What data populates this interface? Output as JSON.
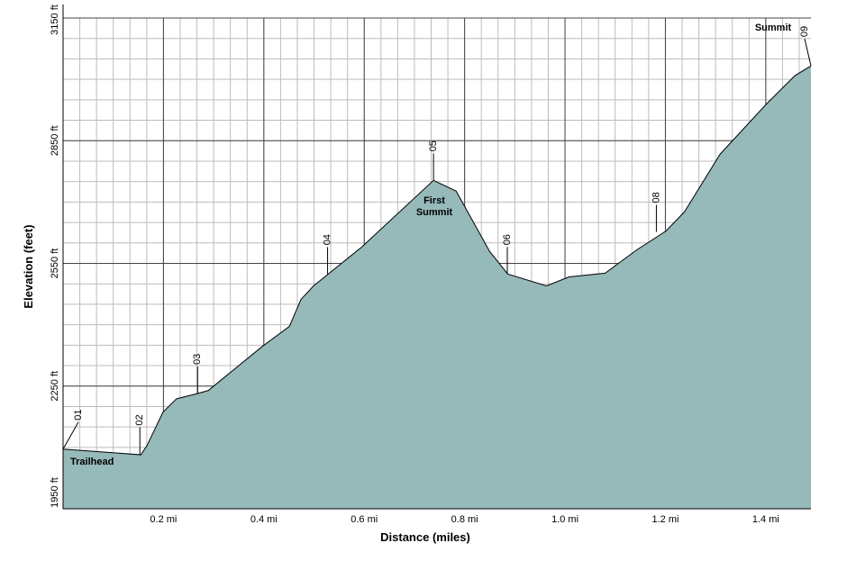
{
  "chart_data": {
    "type": "area",
    "x_label": "Distance (miles)",
    "y_label": "Elevation (feet)",
    "xlim": [
      0,
      1.49
    ],
    "ylim": [
      1950,
      3150
    ],
    "xticks": [
      {
        "value": 0.2,
        "label": "0.2 mi"
      },
      {
        "value": 0.4,
        "label": "0.4 mi"
      },
      {
        "value": 0.6,
        "label": "0.6 mi"
      },
      {
        "value": 0.8,
        "label": "0.8 mi"
      },
      {
        "value": 1.0,
        "label": "1.0 mi"
      },
      {
        "value": 1.2,
        "label": "1.2 mi"
      },
      {
        "value": 1.4,
        "label": "1.4 mi"
      }
    ],
    "yticks": [
      {
        "value": 1950,
        "label": "1950 ft"
      },
      {
        "value": 2250,
        "label": "2250 ft"
      },
      {
        "value": 2550,
        "label": "2550 ft"
      },
      {
        "value": 2850,
        "label": "2850 ft"
      },
      {
        "value": 3150,
        "label": "3150 ft"
      }
    ],
    "grid": true,
    "color": "#96b9b9",
    "x": [
      0,
      0.056,
      0.155,
      0.167,
      0.199,
      0.226,
      0.262,
      0.289,
      0.397,
      0.451,
      0.474,
      0.499,
      0.595,
      0.738,
      0.783,
      0.85,
      0.886,
      0.963,
      1.008,
      1.08,
      1.143,
      1.201,
      1.238,
      1.309,
      1.4,
      1.458,
      1.49
    ],
    "values": [
      2096,
      2091,
      2082,
      2104,
      2186,
      2219,
      2230,
      2239,
      2347,
      2396,
      2462,
      2495,
      2590,
      2753,
      2727,
      2579,
      2524,
      2495,
      2517,
      2526,
      2583,
      2629,
      2676,
      2817,
      2938,
      3009,
      3033
    ],
    "waypoints": [
      {
        "label": "01",
        "x": 0,
        "elevation": 2096,
        "note": [
          "Trailhead"
        ]
      },
      {
        "label": "02",
        "x": 0.153,
        "elevation": 2083
      },
      {
        "label": "03",
        "x": 0.268,
        "elevation": 2232
      },
      {
        "label": "04",
        "x": 0.527,
        "elevation": 2524
      },
      {
        "label": "05",
        "x": 0.738,
        "elevation": 2753,
        "note": [
          "First",
          "Summit"
        ]
      },
      {
        "label": "06",
        "x": 0.885,
        "elevation": 2524
      },
      {
        "label": "08",
        "x": 1.182,
        "elevation": 2627
      },
      {
        "label": "09",
        "x": 1.49,
        "elevation": 3033,
        "note": [
          "Summit"
        ]
      }
    ]
  }
}
